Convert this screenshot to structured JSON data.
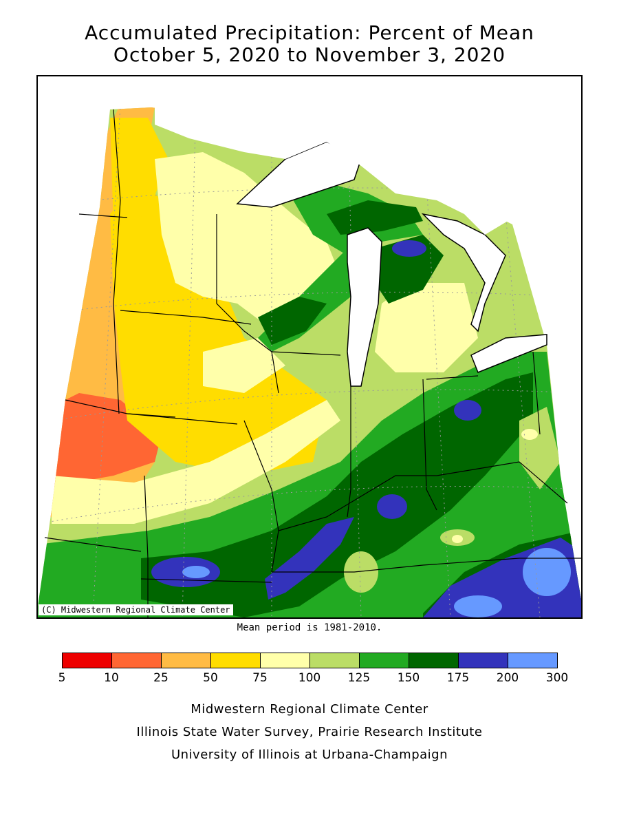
{
  "title": {
    "line1": "Accumulated Precipitation: Percent of Mean",
    "line2": "October 5, 2020 to November 3, 2020"
  },
  "map": {
    "copyright": "(C) Midwestern Regional Climate Center",
    "mean_note": "Mean period is 1981-2010."
  },
  "legend": {
    "breaks": [
      "5",
      "10",
      "25",
      "50",
      "75",
      "100",
      "125",
      "150",
      "175",
      "200",
      "300"
    ],
    "colors": [
      "#ee0000",
      "#ff6633",
      "#ffbb44",
      "#ffdd00",
      "#ffffaa",
      "#bbdd66",
      "#22aa22",
      "#006600",
      "#3333bb",
      "#6699ff"
    ]
  },
  "credits": {
    "line1": "Midwestern Regional Climate Center",
    "line2": "Illinois State Water Survey, Prairie Research Institute",
    "line3": "University of Illinois at Urbana-Champaign"
  }
}
